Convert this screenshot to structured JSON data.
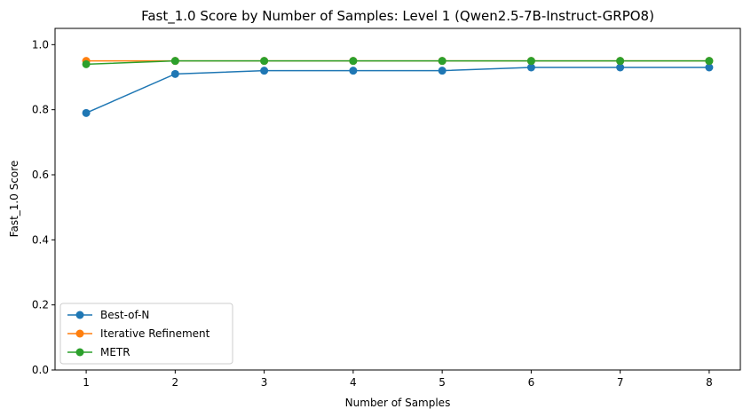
{
  "chart_data": {
    "type": "line",
    "title": "Fast_1.0 Score by Number of Samples: Level 1 (Qwen2.5-7B-Instruct-GRPO8)",
    "xlabel": "Number of Samples",
    "ylabel": "Fast_1.0 Score",
    "x": [
      1,
      2,
      3,
      4,
      5,
      6,
      7,
      8
    ],
    "xlim": [
      0.65,
      8.35
    ],
    "ylim": [
      0,
      1.05
    ],
    "xticks": [
      "1",
      "2",
      "3",
      "4",
      "5",
      "6",
      "7",
      "8"
    ],
    "yticks": [
      "0.0",
      "0.2",
      "0.4",
      "0.6",
      "0.8",
      "1.0"
    ],
    "grid": false,
    "legend_position": "lower-left",
    "series": [
      {
        "name": "Best-of-N",
        "color": "#1f77b4",
        "values": [
          0.79,
          0.91,
          0.92,
          0.92,
          0.92,
          0.93,
          0.93,
          0.93
        ]
      },
      {
        "name": "Iterative Refinement",
        "color": "#ff7f0e",
        "values": [
          0.95,
          0.95,
          0.95,
          0.95,
          0.95,
          0.95,
          0.95,
          0.95
        ]
      },
      {
        "name": "METR",
        "color": "#2ca02c",
        "values": [
          0.94,
          0.95,
          0.95,
          0.95,
          0.95,
          0.95,
          0.95,
          0.95
        ]
      }
    ]
  }
}
